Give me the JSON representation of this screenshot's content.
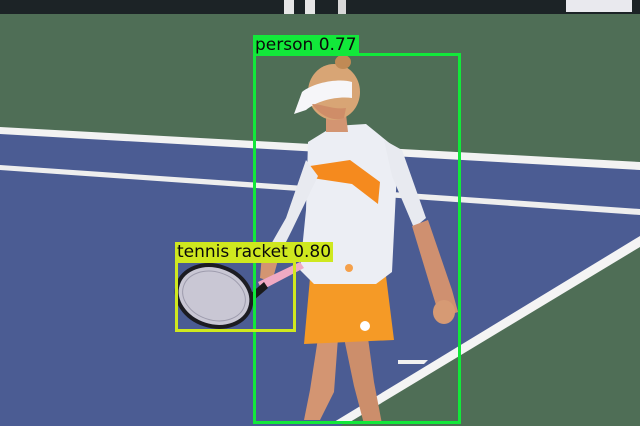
{
  "detections": [
    {
      "label": "person",
      "score": "0.77",
      "color": "#12e83a"
    },
    {
      "label": "tennis racket",
      "score": "0.80",
      "color": "#cfe81f"
    }
  ],
  "colors": {
    "court_green": "#4d6b55",
    "court_blue": "#4b5c93",
    "court_line": "#f2f2f2",
    "shirt": "#eeeef3",
    "skirt": "#f59a26",
    "skin": "#d69a74"
  }
}
